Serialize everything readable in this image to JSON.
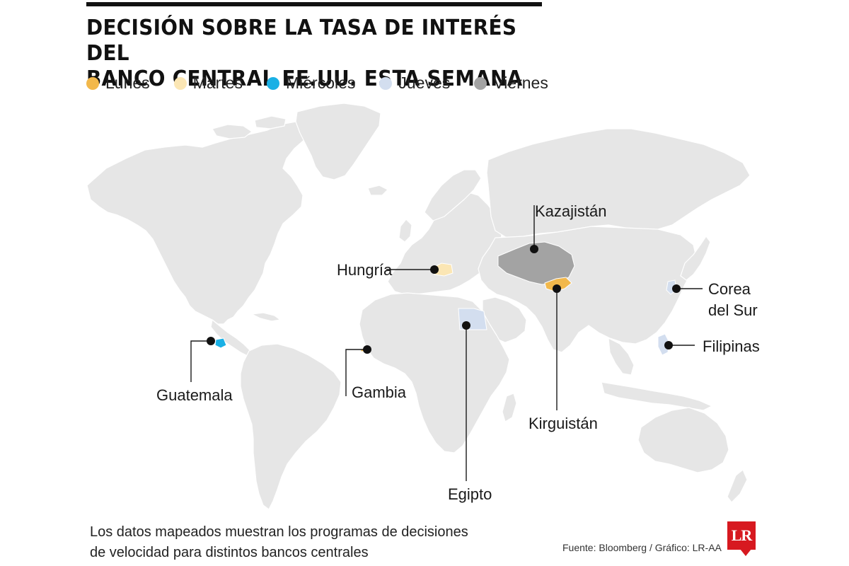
{
  "title": {
    "line1": "DECISIÓN SOBRE LA TASA DE INTERÉS DEL",
    "line2": "BANCO CENTRAL EE.UU. ESTA SEMANA"
  },
  "colors": {
    "lunes": "#f2b84b",
    "martes": "#fbe6b4",
    "miercoles": "#1ab0e5",
    "jueves": "#d3deef",
    "viernes": "#a3a3a3",
    "land": "#e6e6e6",
    "border": "#ffffff",
    "marker": "#111111"
  },
  "legend": [
    {
      "label": "Lunes",
      "color": "#f2b84b"
    },
    {
      "label": "Martes",
      "color": "#fbe6b4"
    },
    {
      "label": "Miércoles",
      "color": "#1ab0e5"
    },
    {
      "label": "Jueves",
      "color": "#d3deef"
    },
    {
      "label": "Viernes",
      "color": "#a3a3a3"
    }
  ],
  "countries": [
    {
      "label": "Kazajistán",
      "day": "Viernes"
    },
    {
      "label": "Hungría",
      "day": "Martes"
    },
    {
      "label": "Corea",
      "label2": "del Sur",
      "day": "Jueves"
    },
    {
      "label": "Filipinas",
      "day": "Jueves"
    },
    {
      "label": "Guatemala",
      "day": "Miércoles"
    },
    {
      "label": "Gambia",
      "day": "Lunes"
    },
    {
      "label": "Egipto",
      "day": "Jueves"
    },
    {
      "label": "Kirguistán",
      "day": "Lunes"
    }
  ],
  "footnote": {
    "line1": "Los datos mapeados muestran los programas de decisiones",
    "line2": "de velocidad para distintos bancos centrales"
  },
  "source": "Fuente: Bloomberg / Gráfico: LR-AA",
  "logo": "LR"
}
